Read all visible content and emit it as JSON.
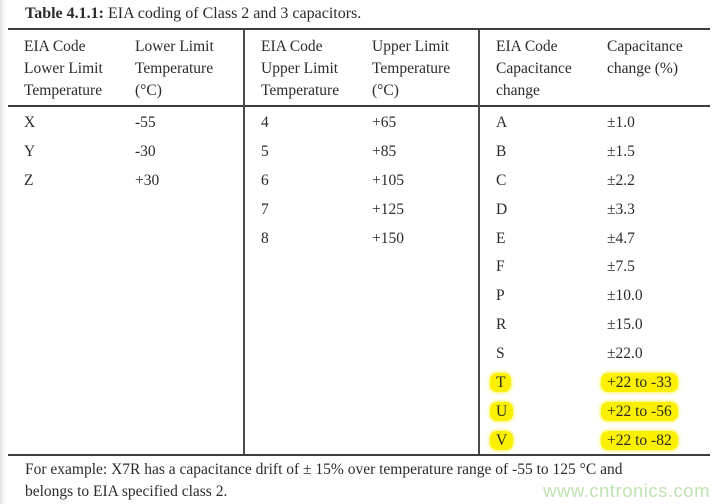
{
  "page": {
    "title_label": "Table 4.1.1:",
    "title_text": " EIA coding of Class 2 and 3 capacitors."
  },
  "colors": {
    "highlight": "#fbf000",
    "watermark": "#bfe2b3",
    "table_line": "#3d3d3d",
    "text": "#2b2b2b"
  },
  "table": {
    "groups": [
      {
        "header_code": "EIA Code\nLower Limit\nTemperature",
        "header_value": "Lower Limit\nTemperature\n(°C)",
        "rows": [
          {
            "code": "X",
            "value": "-55",
            "highlight": false
          },
          {
            "code": "Y",
            "value": "-30",
            "highlight": false
          },
          {
            "code": "Z",
            "value": "+30",
            "highlight": false
          }
        ]
      },
      {
        "header_code": "EIA Code\nUpper Limit\nTemperature",
        "header_value": "Upper Limit\nTemperature\n(°C)",
        "rows": [
          {
            "code": "4",
            "value": "+65",
            "highlight": false
          },
          {
            "code": "5",
            "value": "+85",
            "highlight": false
          },
          {
            "code": "6",
            "value": "+105",
            "highlight": false
          },
          {
            "code": "7",
            "value": "+125",
            "highlight": false
          },
          {
            "code": "8",
            "value": "+150",
            "highlight": false
          }
        ]
      },
      {
        "header_code": "EIA Code\nCapacitance\nchange",
        "header_value": "Capacitance\nchange (%)",
        "rows": [
          {
            "code": "A",
            "value": "±1.0",
            "highlight": false
          },
          {
            "code": "B",
            "value": "±1.5",
            "highlight": false
          },
          {
            "code": "C",
            "value": "±2.2",
            "highlight": false
          },
          {
            "code": "D",
            "value": "±3.3",
            "highlight": false
          },
          {
            "code": "E",
            "value": "±4.7",
            "highlight": false
          },
          {
            "code": "F",
            "value": "±7.5",
            "highlight": false
          },
          {
            "code": "P",
            "value": "±10.0",
            "highlight": false
          },
          {
            "code": "R",
            "value": "±15.0",
            "highlight": false
          },
          {
            "code": "S",
            "value": "±22.0",
            "highlight": false
          },
          {
            "code": "T",
            "value": "+22 to -33",
            "highlight": true
          },
          {
            "code": "U",
            "value": "+22 to -56",
            "highlight": true
          },
          {
            "code": "V",
            "value": "+22 to -82",
            "highlight": true
          }
        ]
      }
    ]
  },
  "footer": {
    "lines": [
      "For example: X7R has a capacitance drift of ± 15% over temperature range of -55 to 125 °C and",
      "belongs to EIA specified class 2."
    ]
  },
  "watermark": {
    "text": "www.cntronics.com"
  }
}
